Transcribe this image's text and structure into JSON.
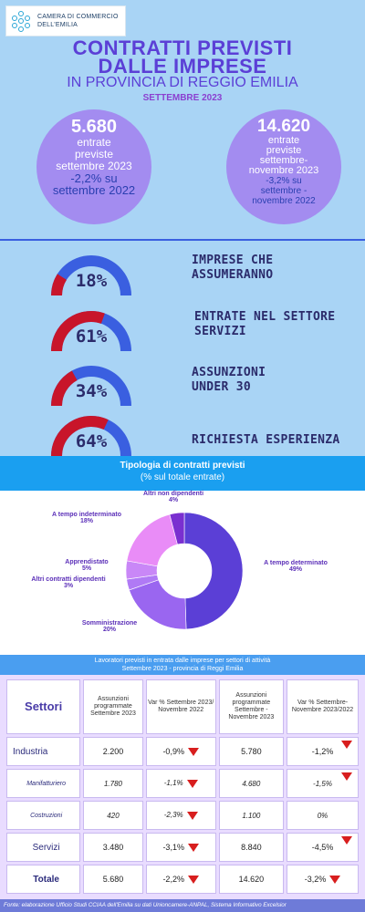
{
  "logo": {
    "line1": "CAMERA DI COMMERCIO",
    "line2": "DELL'EMILIA"
  },
  "header": {
    "title_line1": "CONTRATTI PREVISTI",
    "title_line2": "DALLE IMPRESE",
    "subtitle": "IN PROVINCIA DI REGGIO EMILIA",
    "date": "SETTEMBRE 2023"
  },
  "circles": [
    {
      "value": "5.680",
      "lines": [
        "entrate",
        "previste",
        "settembre 2023"
      ],
      "var_line1": "-2,2% su",
      "var_line2": "settembre 2022"
    },
    {
      "value": "14.620",
      "lines": [
        "entrate",
        "previste",
        "settembre-",
        "novembre 2023"
      ],
      "var_line1": "-3,2% su",
      "var_line2": "settembre -",
      "var_line3": "novembre 2022"
    }
  ],
  "gauges": [
    {
      "percent": 18,
      "label": "18%",
      "text_line1": "IMPRESE CHE",
      "text_line2": "ASSUMERANNO"
    },
    {
      "percent": 61,
      "label": "61%",
      "text_line1": "ENTRATE NEL SETTORE",
      "text_line2": "SERVIZI"
    },
    {
      "percent": 34,
      "label": "34%",
      "text_line1": "ASSUNZIONI",
      "text_line2": "UNDER 30"
    },
    {
      "percent": 64,
      "label": "64%",
      "text_line1": "RICHIESTA ESPERIENZA",
      "text_line2": ""
    }
  ],
  "gauge_colors": {
    "filled": "#c8152a",
    "empty": "#3a5fe0"
  },
  "chart_data": {
    "type": "pie",
    "title": "Tipologia di contratti previsti",
    "subtitle": "(% sul totale entrate)",
    "series": [
      {
        "name": "A tempo determinato",
        "value": 49,
        "label": "49%",
        "color": "#5b3fd6"
      },
      {
        "name": "Somministrazione",
        "value": 20,
        "label": "20%",
        "color": "#9a66f0"
      },
      {
        "name": "Altri contratti dipendenti",
        "value": 3,
        "label": "3%",
        "color": "#b07af5"
      },
      {
        "name": "Apprendistato",
        "value": 5,
        "label": "5%",
        "color": "#c987f7"
      },
      {
        "name": "A tempo indeterminato",
        "value": 18,
        "label": "18%",
        "color": "#e98cf7"
      },
      {
        "name": "Altri non dipendenti",
        "value": 4,
        "label": "4%",
        "color": "#7a2fd0"
      }
    ]
  },
  "table": {
    "banner_line1": "Lavoratori previsti in entrata dalle imprese per settori di attività",
    "banner_line2": "Settembre 2023 - provincia di Reggi Emilia",
    "headers": [
      "Settori",
      "Assunzioni programmate Settembre 2023",
      "Var % Settembre 2023/ Novembre 2022",
      "Assunzioni programmate Settembre - Novembre 2023",
      "Var % Settembre-Novembre 2023/2022"
    ],
    "rows": [
      {
        "sector": "Industria",
        "a": "2.200",
        "v1": "-0,9%",
        "b": "5.780",
        "v2": "-1,2%"
      },
      {
        "sector": "Manifatturiero",
        "a": "1.780",
        "v1": "-1,1%",
        "b": "4.680",
        "v2": "-1,5%"
      },
      {
        "sector": "Costruzioni",
        "a": "420",
        "v1": "-2,3%",
        "b": "1.100",
        "v2": "0%"
      },
      {
        "sector": "Servizi",
        "a": "3.480",
        "v1": "-3,1%",
        "b": "8.840",
        "v2": "-4,5%"
      },
      {
        "sector": "Totale",
        "a": "5.680",
        "v1": "-2,2%",
        "b": "14.620",
        "v2": "-3,2%"
      }
    ]
  },
  "footer": "Fonte: elaborazione Ufficio Studi CCIAA dell'Emilia su dati Unioncamere-ANPAL, Sistema Informativo Excelsior"
}
